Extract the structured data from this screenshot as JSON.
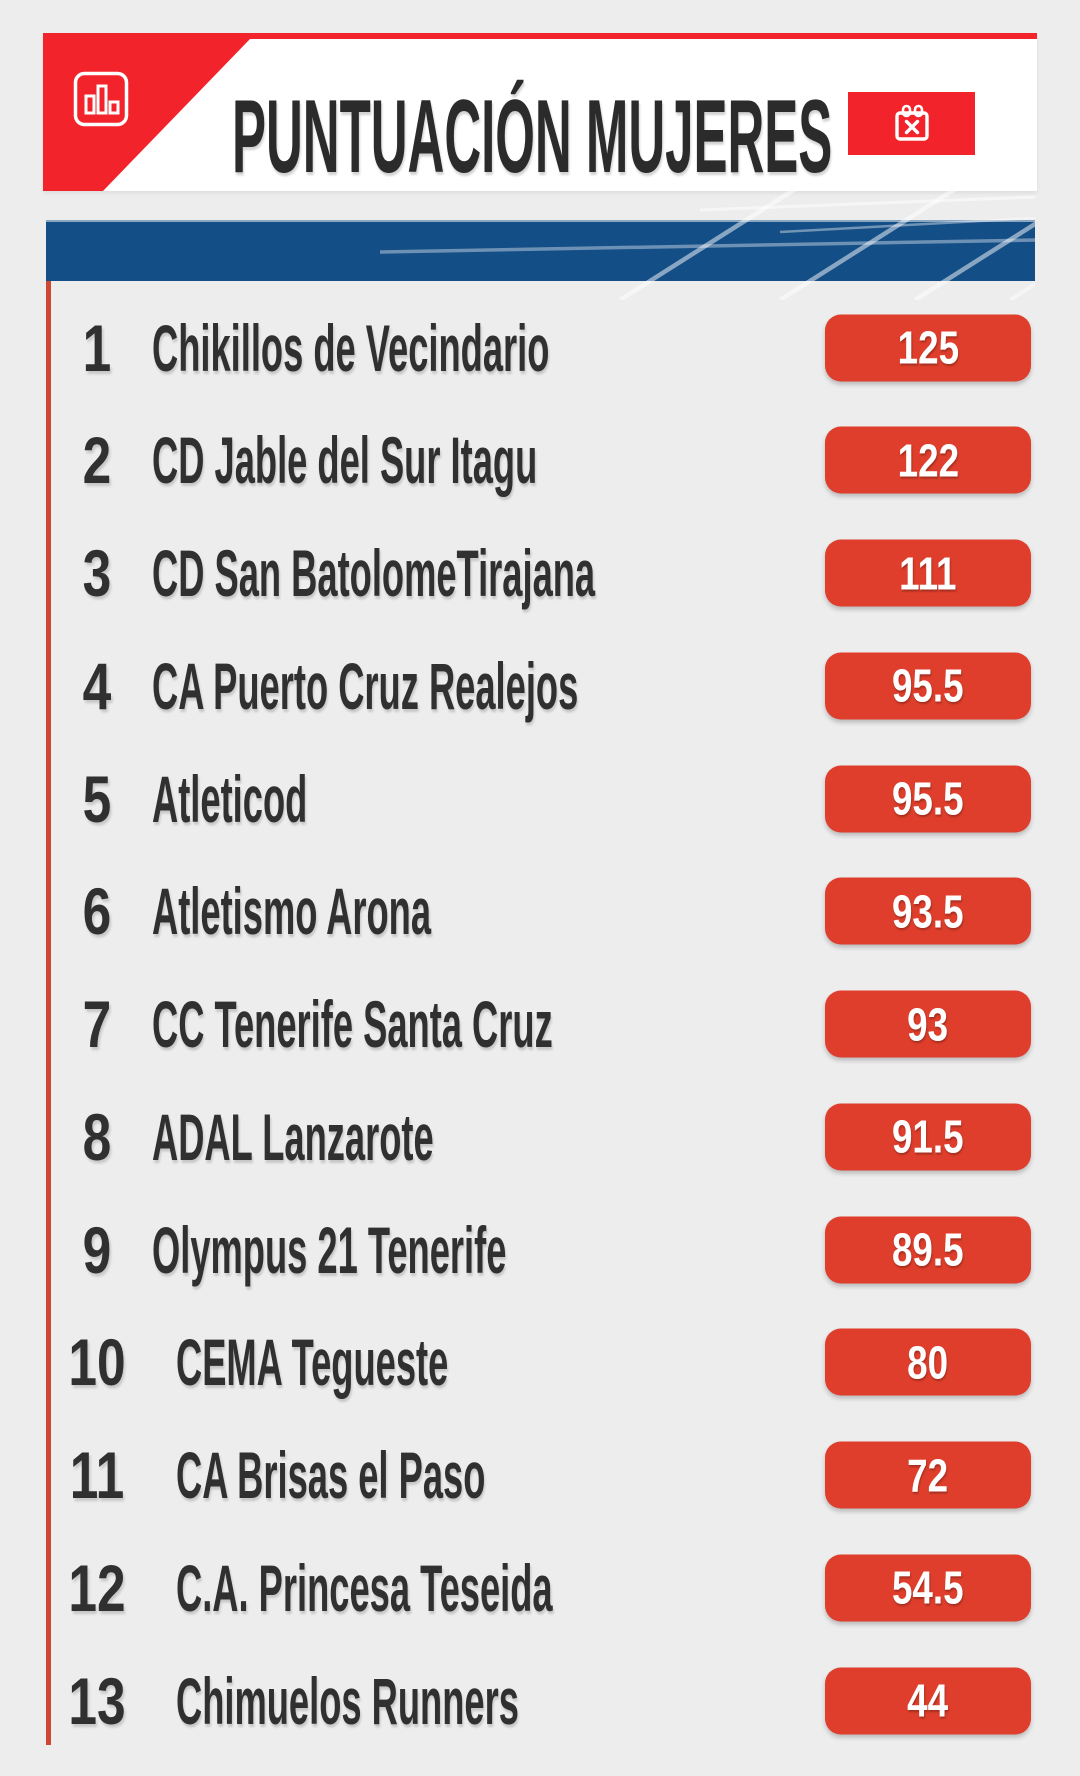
{
  "header": {
    "title": "PUNTUACIÓN MUJERES",
    "left_icon": "bar-chart-icon",
    "right_icon": "calendar-x-icon"
  },
  "colors": {
    "header_red": "#f2232a",
    "badge_red": "#de3e2b",
    "accent_line_red": "#cf4732",
    "strip_blue": "#134e86",
    "text_dark": "#303030",
    "background_gray": "#ededee",
    "card_white": "#ffffff",
    "score_text": "#ffffff"
  },
  "ranking": {
    "rows": [
      {
        "rank": "1",
        "team": "Chikillos de Vecindario",
        "score": "125"
      },
      {
        "rank": "2",
        "team": "CD Jable del Sur Itagu",
        "score": "122"
      },
      {
        "rank": "3",
        "team": "CD San BatolomeTirajana",
        "score": "111"
      },
      {
        "rank": "4",
        "team": "CA Puerto Cruz Realejos",
        "score": "95.5"
      },
      {
        "rank": "5",
        "team": "Atleticod",
        "score": "95.5"
      },
      {
        "rank": "6",
        "team": "Atletismo Arona",
        "score": "93.5"
      },
      {
        "rank": "7",
        "team": "CC Tenerife Santa Cruz",
        "score": "93"
      },
      {
        "rank": "8",
        "team": "ADAL Lanzarote",
        "score": "91.5"
      },
      {
        "rank": "9",
        "team": "Olympus 21 Tenerife",
        "score": "89.5"
      },
      {
        "rank": "10",
        "team": "CEMA Tegueste",
        "score": "80"
      },
      {
        "rank": "11",
        "team": "CA Brisas el Paso",
        "score": "72"
      },
      {
        "rank": "12",
        "team": "C.A. Princesa Teseida",
        "score": "54.5"
      },
      {
        "rank": "13",
        "team": "Chimuelos Runners",
        "score": "44"
      }
    ]
  },
  "chart_data": {
    "type": "table",
    "title": "PUNTUACIÓN MUJERES",
    "columns": [
      "rank",
      "team",
      "points"
    ],
    "categories": [
      "Chikillos de Vecindario",
      "CD Jable del Sur Itagu",
      "CD San BatolomeTirajana",
      "CA Puerto Cruz Realejos",
      "Atleticod",
      "Atletismo Arona",
      "CC Tenerife Santa Cruz",
      "ADAL Lanzarote",
      "Olympus 21 Tenerife",
      "CEMA Tegueste",
      "CA Brisas el Paso",
      "C.A. Princesa Teseida",
      "Chimuelos Runners"
    ],
    "values": [
      125,
      122,
      111,
      95.5,
      95.5,
      93.5,
      93,
      91.5,
      89.5,
      80,
      72,
      54.5,
      44
    ]
  }
}
